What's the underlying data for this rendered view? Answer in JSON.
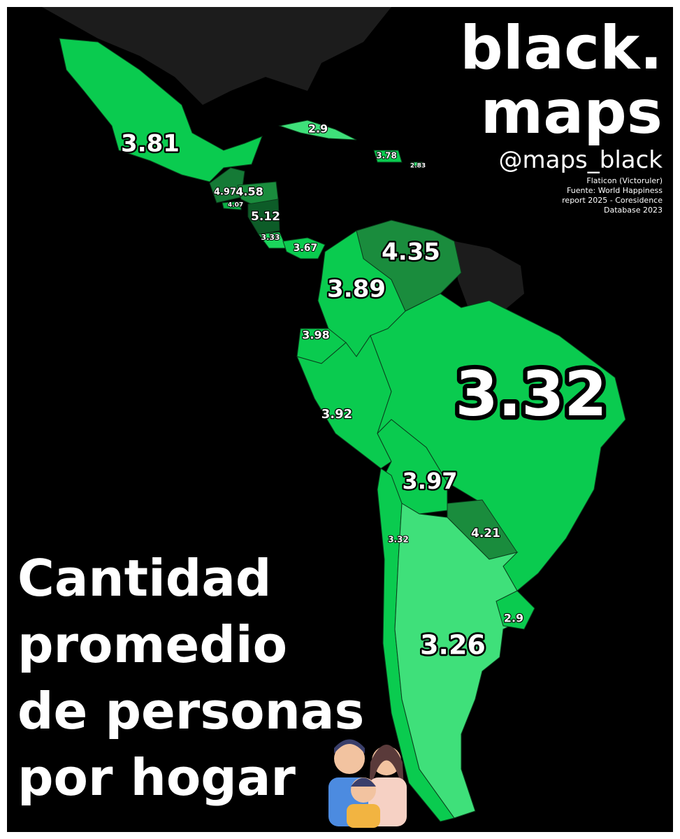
{
  "brand": {
    "lines": [
      "black.",
      "maps"
    ],
    "handle": "@maps_black"
  },
  "credits": [
    "Flaticon (Victoruler)",
    "Fuente: World Happiness",
    "report 2025 - Coresidence",
    "Database 2023"
  ],
  "title": {
    "lines": [
      "Cantidad",
      "promedio",
      "de personas",
      "por hogar"
    ]
  },
  "regions": [
    {
      "value": 3.81,
      "color": "#0acb4f"
    },
    {
      "value": 2.9,
      "color": "#3fe07a"
    },
    {
      "value": 3.78,
      "color": "#0acb4f"
    },
    {
      "value": 2.83,
      "color": "#3fe07a"
    },
    {
      "value": 4.97,
      "color": "#157a36"
    },
    {
      "value": 4.58,
      "color": "#1a8c3d"
    },
    {
      "value": 4.07,
      "color": "#0bae44"
    },
    {
      "value": 5.12,
      "color": "#0d5c28"
    },
    {
      "value": 3.33,
      "color": "#1bd65c"
    },
    {
      "value": 3.67,
      "color": "#0acb4f"
    },
    {
      "value": 4.35,
      "color": "#1a8c3d"
    },
    {
      "value": 3.89,
      "color": "#0acb4f"
    },
    {
      "value": 3.98,
      "color": "#0acb4f"
    },
    {
      "value": 3.92,
      "color": "#0acb4f"
    },
    {
      "value": 3.32,
      "color": "#0acb4f"
    },
    {
      "value": 3.97,
      "color": "#0acb4f"
    },
    {
      "value": 4.21,
      "color": "#1a8c3d"
    },
    {
      "value": 3.32,
      "color": "#0acb4f"
    },
    {
      "value": 2.9,
      "color": "#3fe07a"
    },
    {
      "value": 3.26,
      "color": "#0acb4f"
    }
  ]
}
